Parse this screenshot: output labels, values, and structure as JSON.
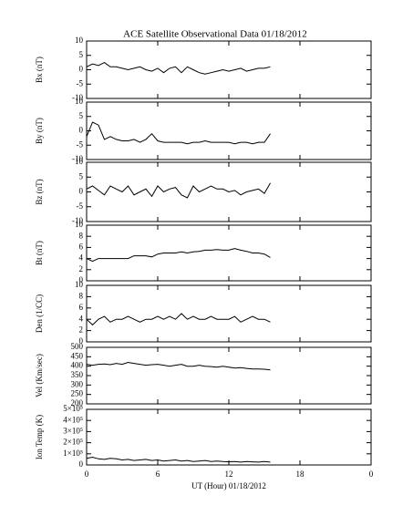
{
  "chart_data": [
    {
      "type": "line",
      "title": "ACE Satellite Observational Data   01/18/2012",
      "ylabel": "Bx (nT)",
      "color": "#000000",
      "x": [
        0,
        0.5,
        1,
        1.5,
        2,
        2.5,
        3,
        3.5,
        4,
        4.5,
        5,
        5.5,
        6,
        6.5,
        7,
        7.5,
        8,
        8.5,
        9,
        9.5,
        10,
        10.5,
        11,
        11.5,
        12,
        12.5,
        13,
        13.5,
        14,
        14.5,
        15,
        15.5
      ],
      "values": [
        1,
        2,
        1.5,
        2.5,
        1,
        1,
        0.5,
        0,
        0.5,
        1,
        0,
        -0.5,
        0.5,
        -1,
        0.5,
        1,
        -1,
        1,
        0,
        -1,
        -1.5,
        -1,
        -0.5,
        0,
        -0.5,
        0,
        0.5,
        -0.5,
        0,
        0.5,
        0.5,
        1
      ],
      "xlim": [
        0,
        24
      ],
      "ylim": [
        -10,
        10
      ],
      "yticks": [
        -10,
        -5,
        0,
        5,
        10
      ]
    },
    {
      "type": "line",
      "ylabel": "By (nT)",
      "color": "#000000",
      "x": [
        0,
        0.5,
        1,
        1.5,
        2,
        2.5,
        3,
        3.5,
        4,
        4.5,
        5,
        5.5,
        6,
        6.5,
        7,
        7.5,
        8,
        8.5,
        9,
        9.5,
        10,
        10.5,
        11,
        11.5,
        12,
        12.5,
        13,
        13.5,
        14,
        14.5,
        15,
        15.5
      ],
      "values": [
        -2,
        3,
        2,
        -3,
        -2,
        -3,
        -3.5,
        -3.5,
        -3,
        -4,
        -3,
        -1,
        -3.5,
        -4,
        -4,
        -4,
        -4,
        -4.5,
        -4,
        -4,
        -3.5,
        -4,
        -4,
        -4,
        -4,
        -4.5,
        -4,
        -4,
        -4.5,
        -4,
        -4,
        -1
      ],
      "xlim": [
        0,
        24
      ],
      "ylim": [
        -10,
        10
      ],
      "yticks": [
        -10,
        -5,
        0,
        5,
        10
      ]
    },
    {
      "type": "line",
      "ylabel": "Bz (nT)",
      "color": "#000000",
      "x": [
        0,
        0.5,
        1,
        1.5,
        2,
        2.5,
        3,
        3.5,
        4,
        4.5,
        5,
        5.5,
        6,
        6.5,
        7,
        7.5,
        8,
        8.5,
        9,
        9.5,
        10,
        10.5,
        11,
        11.5,
        12,
        12.5,
        13,
        13.5,
        14,
        14.5,
        15,
        15.5
      ],
      "values": [
        1,
        2,
        0.5,
        -1,
        2,
        1,
        0,
        2,
        -1,
        0,
        1,
        -1.5,
        2,
        0,
        1,
        1.5,
        -1,
        -2,
        2,
        0,
        1,
        2,
        1,
        1,
        0,
        0.5,
        -1,
        0,
        0.5,
        1,
        -0.5,
        3
      ],
      "xlim": [
        0,
        24
      ],
      "ylim": [
        -10,
        10
      ],
      "yticks": [
        -10,
        -5,
        0,
        5,
        10
      ]
    },
    {
      "type": "line",
      "ylabel": "Bt (nT)",
      "color": "#000000",
      "x": [
        0,
        0.5,
        1,
        1.5,
        2,
        2.5,
        3,
        3.5,
        4,
        4.5,
        5,
        5.5,
        6,
        6.5,
        7,
        7.5,
        8,
        8.5,
        9,
        9.5,
        10,
        10.5,
        11,
        11.5,
        12,
        12.5,
        13,
        13.5,
        14,
        14.5,
        15,
        15.5
      ],
      "values": [
        4,
        3.5,
        4,
        4,
        4,
        4,
        4,
        4,
        4.5,
        4.5,
        4.5,
        4.3,
        4.8,
        5,
        5,
        5,
        5.2,
        5,
        5.2,
        5.3,
        5.5,
        5.5,
        5.6,
        5.5,
        5.5,
        5.8,
        5.5,
        5.3,
        5,
        5,
        4.8,
        4.2
      ],
      "xlim": [
        0,
        24
      ],
      "ylim": [
        0,
        10
      ],
      "yticks": [
        0,
        2,
        4,
        6,
        8,
        10
      ]
    },
    {
      "type": "line",
      "ylabel": "Den (1/CC)",
      "color": "#000000",
      "x": [
        0,
        0.5,
        1,
        1.5,
        2,
        2.5,
        3,
        3.5,
        4,
        4.5,
        5,
        5.5,
        6,
        6.5,
        7,
        7.5,
        8,
        8.5,
        9,
        9.5,
        10,
        10.5,
        11,
        11.5,
        12,
        12.5,
        13,
        13.5,
        14,
        14.5,
        15,
        15.5
      ],
      "values": [
        4,
        3,
        4,
        4.5,
        3.5,
        4,
        4,
        4.5,
        4,
        3.5,
        4,
        4,
        4.5,
        4,
        4.5,
        4,
        5,
        4,
        4.5,
        4,
        4,
        4.5,
        4,
        4,
        4,
        4.5,
        3.5,
        4,
        4.5,
        4,
        4,
        3.5
      ],
      "xlim": [
        0,
        24
      ],
      "ylim": [
        0,
        10
      ],
      "yticks": [
        0,
        2,
        4,
        6,
        8,
        10
      ]
    },
    {
      "type": "line",
      "ylabel": "Vel (Km/sec)",
      "color": "#000000",
      "x": [
        0,
        0.5,
        1,
        1.5,
        2,
        2.5,
        3,
        3.5,
        4,
        4.5,
        5,
        5.5,
        6,
        6.5,
        7,
        7.5,
        8,
        8.5,
        9,
        9.5,
        10,
        10.5,
        11,
        11.5,
        12,
        12.5,
        13,
        13.5,
        14,
        14.5,
        15,
        15.5
      ],
      "values": [
        410,
        405,
        410,
        412,
        408,
        415,
        410,
        420,
        415,
        410,
        405,
        408,
        410,
        405,
        400,
        405,
        410,
        400,
        400,
        405,
        400,
        398,
        395,
        400,
        395,
        390,
        392,
        388,
        385,
        385,
        384,
        380
      ],
      "xlim": [
        0,
        24
      ],
      "ylim": [
        200,
        500
      ],
      "yticks": [
        200,
        250,
        300,
        350,
        400,
        450,
        500
      ]
    },
    {
      "type": "line",
      "ylabel": "Ion Temp (K)",
      "xlabel": "UT (Hour)  01/18/2012",
      "color": "#000000",
      "x": [
        0,
        0.5,
        1,
        1.5,
        2,
        2.5,
        3,
        3.5,
        4,
        4.5,
        5,
        5.5,
        6,
        6.5,
        7,
        7.5,
        8,
        8.5,
        9,
        9.5,
        10,
        10.5,
        11,
        11.5,
        12,
        12.5,
        13,
        13.5,
        14,
        14.5,
        15,
        15.5
      ],
      "values": [
        60000,
        70000,
        55000,
        50000,
        60000,
        55000,
        45000,
        50000,
        40000,
        45000,
        50000,
        40000,
        45000,
        35000,
        40000,
        45000,
        35000,
        40000,
        30000,
        35000,
        40000,
        30000,
        35000,
        30000,
        28000,
        30000,
        25000,
        30000,
        28000,
        25000,
        30000,
        25000
      ],
      "xlim": [
        0,
        24
      ],
      "xticks": [
        0,
        6,
        12,
        18,
        {
          "value": 24,
          "label": "0"
        }
      ],
      "ylim": [
        0,
        500000
      ],
      "yticks": [
        0,
        {
          "value": 100000,
          "label": "1×10⁵"
        },
        {
          "value": 200000,
          "label": "2×10⁵"
        },
        {
          "value": 300000,
          "label": "3×10⁵"
        },
        {
          "value": 400000,
          "label": "4×10⁵"
        },
        {
          "value": 500000,
          "label": "5×10⁵"
        }
      ]
    }
  ]
}
